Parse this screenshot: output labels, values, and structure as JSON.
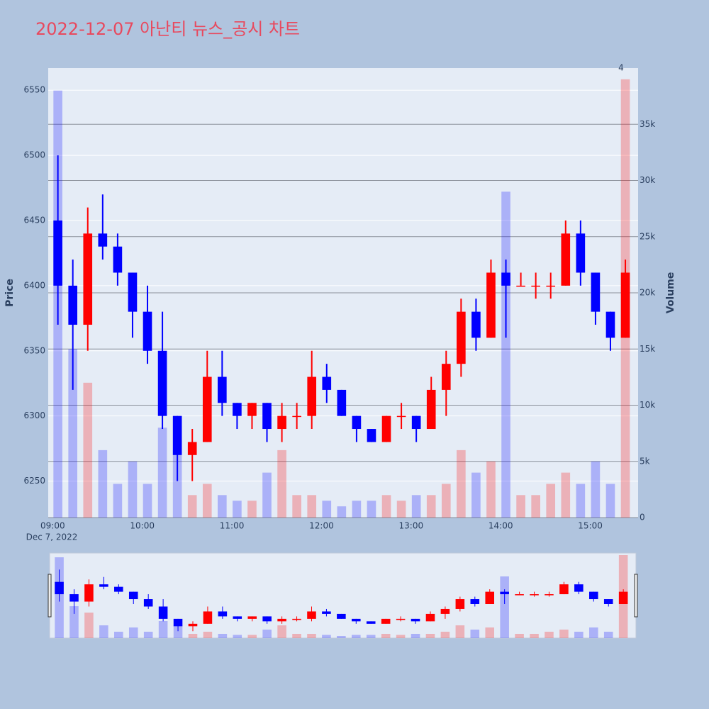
{
  "chart_data": {
    "type": "candlestick",
    "title": "2022-12-07 아난티 뉴스_공시 차트",
    "yaxis_title": "Price",
    "y2axis_title": "Volume",
    "x_sublabel": "Dec 7, 2022",
    "annotation": "4",
    "x": [
      "09:00",
      "09:10",
      "09:20",
      "09:30",
      "09:40",
      "09:50",
      "10:00",
      "10:10",
      "10:20",
      "10:30",
      "10:40",
      "10:50",
      "11:00",
      "11:10",
      "11:20",
      "11:30",
      "11:40",
      "11:50",
      "12:00",
      "12:10",
      "12:20",
      "12:30",
      "12:40",
      "12:50",
      "13:00",
      "13:10",
      "13:20",
      "13:30",
      "13:40",
      "13:50",
      "14:00",
      "14:10",
      "14:20",
      "14:30",
      "14:40",
      "14:50",
      "15:00",
      "15:10",
      "15:20"
    ],
    "open": [
      6450,
      6400,
      6370,
      6440,
      6430,
      6410,
      6380,
      6350,
      6300,
      6270,
      6280,
      6330,
      6310,
      6300,
      6310,
      6290,
      6300,
      6300,
      6330,
      6320,
      6300,
      6290,
      6280,
      6300,
      6300,
      6290,
      6320,
      6340,
      6380,
      6360,
      6410,
      6400,
      6400,
      6400,
      6400,
      6440,
      6410,
      6380,
      6360
    ],
    "high": [
      6500,
      6420,
      6460,
      6470,
      6440,
      6410,
      6400,
      6380,
      6300,
      6290,
      6350,
      6350,
      6310,
      6310,
      6310,
      6310,
      6310,
      6350,
      6340,
      6320,
      6300,
      6290,
      6300,
      6310,
      6300,
      6330,
      6350,
      6390,
      6390,
      6420,
      6420,
      6410,
      6410,
      6410,
      6450,
      6450,
      6410,
      6380,
      6420
    ],
    "low": [
      6370,
      6320,
      6350,
      6420,
      6400,
      6360,
      6340,
      6290,
      6250,
      6250,
      6280,
      6300,
      6290,
      6290,
      6280,
      6280,
      6290,
      6290,
      6310,
      6300,
      6280,
      6280,
      6280,
      6290,
      6280,
      6290,
      6300,
      6330,
      6350,
      6360,
      6360,
      6400,
      6390,
      6390,
      6400,
      6400,
      6370,
      6350,
      6360
    ],
    "close": [
      6400,
      6370,
      6440,
      6430,
      6410,
      6380,
      6350,
      6300,
      6270,
      6280,
      6330,
      6310,
      6300,
      6310,
      6290,
      6300,
      6300,
      6330,
      6320,
      6300,
      6290,
      6280,
      6300,
      6300,
      6290,
      6320,
      6340,
      6380,
      6360,
      6410,
      6400,
      6400,
      6400,
      6400,
      6440,
      6410,
      6380,
      6360,
      6410
    ],
    "volume": [
      38000,
      15000,
      12000,
      6000,
      3000,
      5000,
      3000,
      8000,
      6000,
      2000,
      3000,
      2000,
      1500,
      1500,
      4000,
      6000,
      2000,
      2000,
      1500,
      1000,
      1500,
      1500,
      2000,
      1500,
      2000,
      2000,
      3000,
      6000,
      4000,
      5000,
      29000,
      2000,
      2000,
      3000,
      4000,
      3000,
      5000,
      3000,
      39000
    ],
    "increasing_color": "#ff0000",
    "decreasing_color": "#0000ff",
    "xlim": [
      "08:57",
      "15:32"
    ],
    "xticks": [
      "09:00",
      "10:00",
      "11:00",
      "12:00",
      "13:00",
      "14:00",
      "15:00"
    ],
    "ylim": [
      6222,
      6567
    ],
    "yticks": [
      6250,
      6300,
      6350,
      6400,
      6450,
      6500,
      6550
    ],
    "y2lim": [
      0,
      40000
    ],
    "y2ticks": [
      0,
      {
        "value": 5000,
        "label": "5k"
      },
      {
        "value": 10000,
        "label": "10k"
      },
      {
        "value": 15000,
        "label": "15k"
      },
      {
        "value": 20000,
        "label": "20k"
      },
      {
        "value": 25000,
        "label": "25k"
      },
      {
        "value": 30000,
        "label": "30k"
      },
      {
        "value": 35000,
        "label": "35k"
      }
    ],
    "grid": true,
    "rangeslider": true
  }
}
